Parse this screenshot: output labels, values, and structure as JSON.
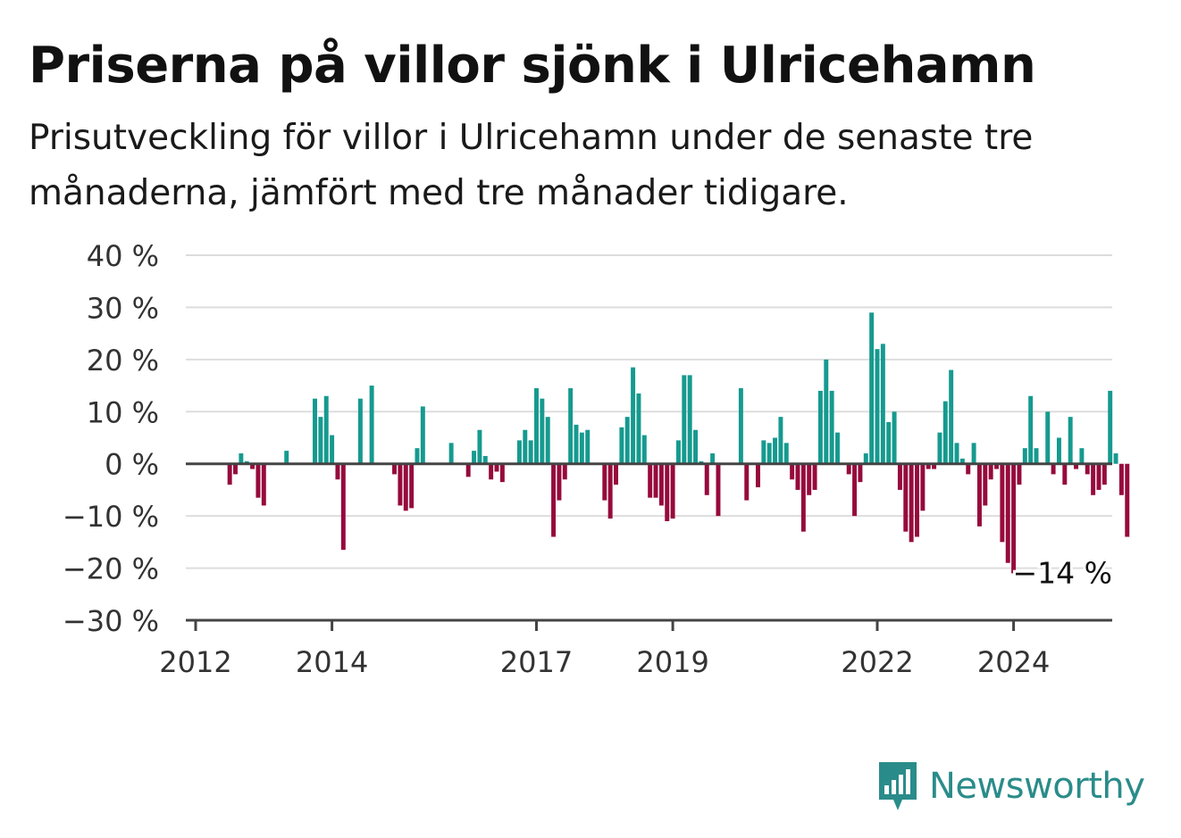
{
  "title": "Priserna på villor sjönk i Ulricehamn",
  "subtitle": "Prisutveckling för villor i Ulricehamn under de senaste tre månaderna, jämfört med tre månader tidigare.",
  "brand": {
    "name": "Newsworthy",
    "color": "#2a8c8a"
  },
  "colors": {
    "positive": "#169a8f",
    "negative": "#960a3c",
    "grid": "#dddddd",
    "axis": "#444444"
  },
  "chart_data": {
    "type": "bar",
    "title": "",
    "xlabel": "",
    "ylabel": "",
    "ylim": [
      -30,
      40
    ],
    "yticks": [
      -30,
      -20,
      -10,
      0,
      10,
      20,
      30,
      40
    ],
    "ytick_labels": [
      "−30 %",
      "−20 %",
      "−10 %",
      "0 %",
      "10 %",
      "20 %",
      "30 %",
      "40 %"
    ],
    "xticks": [
      2012,
      2014,
      2017,
      2019,
      2022,
      2024
    ],
    "xlim": [
      2012,
      2025.5
    ],
    "grid": true,
    "x_start": 2012.5,
    "step_months": 1,
    "values": [
      -4,
      -2,
      2,
      0.5,
      -1,
      -6.5,
      -8,
      0,
      0,
      0,
      2.5,
      0,
      0,
      0,
      0,
      12.5,
      9,
      13,
      5.5,
      -3,
      -16.5,
      0,
      0,
      12.5,
      0,
      15,
      0,
      0,
      0,
      -2,
      -8,
      -9,
      -8.5,
      3,
      11,
      0,
      0,
      0,
      0,
      4,
      0,
      0,
      -2.5,
      2.5,
      6.5,
      1.5,
      -3,
      -1.5,
      -3.5,
      0,
      0,
      4.5,
      6.5,
      4.5,
      14.5,
      12.5,
      9,
      -14,
      -7,
      -3,
      14.5,
      7.5,
      6,
      6.5,
      0,
      0,
      -7,
      -10.5,
      -4,
      7,
      9,
      18.5,
      13.5,
      5.5,
      -6.5,
      -6.5,
      -8,
      -11,
      -10.5,
      4.5,
      17,
      17,
      6.5,
      0.5,
      -6,
      2,
      -10,
      0,
      0,
      0,
      14.5,
      -7,
      0,
      -4.5,
      4.5,
      4,
      5,
      9,
      4,
      -3,
      -5,
      -13,
      -6,
      -5,
      14,
      20,
      14,
      6,
      0,
      -2,
      -10,
      -3.5,
      2,
      29,
      22,
      23,
      8,
      10,
      -5,
      -13,
      -15,
      -14,
      -9,
      -1,
      -1,
      6,
      12,
      18,
      4,
      1,
      -2,
      4,
      -12,
      -8,
      -3,
      -1,
      -15,
      -19,
      -21,
      -4,
      3,
      13,
      3,
      0,
      10,
      -2,
      5,
      -4,
      9,
      -1,
      3,
      -2,
      -6,
      -5,
      -4,
      14,
      2,
      -6,
      -14
    ],
    "annotations": [
      {
        "text": "−14 %",
        "value": -14
      }
    ]
  }
}
